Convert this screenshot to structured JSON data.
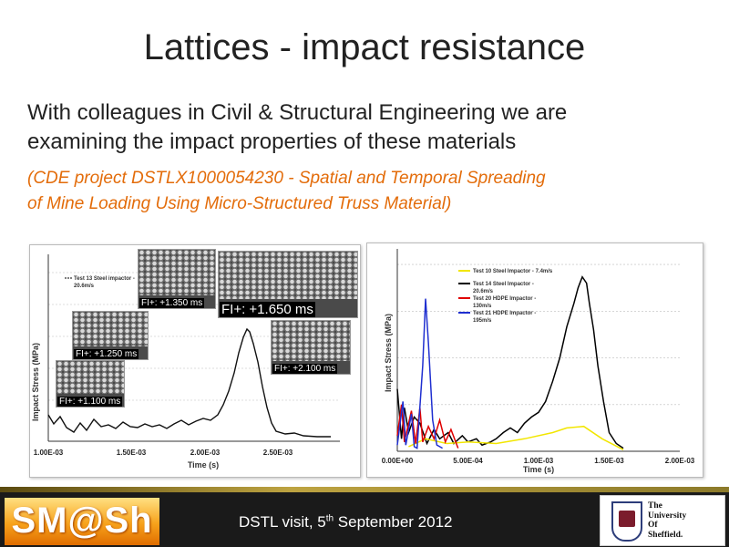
{
  "title": "Lattices - impact resistance",
  "body_line1": "With colleagues in Civil & Structural Engineering we are",
  "body_line2": "examining the impact properties of these materials",
  "project_line1": "(CDE project DSTLX1000054230 - Spatial and Temporal Spreading",
  "project_line2": "of Mine Loading Using Micro-Structured Truss Material)",
  "left_chart": {
    "ylabel": "Impact Stress (MPa)",
    "xlabel": "Time (s)",
    "legend": [
      "Test 13 Steel impactor -",
      "20.6m/s"
    ],
    "ticks": [
      "1.00E-03",
      "1.50E-03",
      "2.00E-03",
      "2.50E-03"
    ],
    "frames": [
      "FI+: +1.350 ms",
      "FI+: +1.650 ms",
      "FI+: +1.250 ms",
      "FI+: +2.100 ms",
      "FI+: +1.100 ms"
    ]
  },
  "chart_data": {
    "type": "line",
    "title": "",
    "xlabel": "Time (s)",
    "ylabel": "Impact Stress (MPa)",
    "xlim": [
      0,
      0.002
    ],
    "x_ticks": [
      "0.00E+00",
      "5.00E-04",
      "1.00E-03",
      "1.50E-03",
      "2.00E-03"
    ],
    "legend": "top-left",
    "series": [
      {
        "name": "Test 10 Steel Impactor - 7.4m/s",
        "color": "#f2e600",
        "points": [
          [
            8e-05,
            3
          ],
          [
            0.0002,
            8
          ],
          [
            0.00035,
            5
          ],
          [
            0.0005,
            6
          ],
          [
            0.0007,
            5
          ],
          [
            0.0009,
            8
          ],
          [
            0.0011,
            12
          ],
          [
            0.0012,
            15
          ],
          [
            0.00132,
            16
          ],
          [
            0.00145,
            8
          ],
          [
            0.0016,
            1
          ]
        ]
      },
      {
        "name": "Test 14 Steel Impactor - 20.6m/s",
        "color": "#000000",
        "points": [
          [
            0,
            40
          ],
          [
            3e-05,
            8
          ],
          [
            5e-05,
            28
          ],
          [
            8e-05,
            12
          ],
          [
            0.00012,
            22
          ],
          [
            0.00016,
            18
          ],
          [
            0.00021,
            5
          ],
          [
            0.00026,
            14
          ],
          [
            0.0003,
            8
          ],
          [
            0.00036,
            12
          ],
          [
            0.0004,
            5
          ],
          [
            0.00046,
            10
          ],
          [
            0.0005,
            6
          ],
          [
            0.00056,
            8
          ],
          [
            0.0006,
            4
          ],
          [
            0.00066,
            6
          ],
          [
            0.0007,
            8
          ],
          [
            0.00075,
            12
          ],
          [
            0.0008,
            15
          ],
          [
            0.00085,
            12
          ],
          [
            0.0009,
            18
          ],
          [
            0.00095,
            22
          ],
          [
            0.001,
            25
          ],
          [
            0.00105,
            32
          ],
          [
            0.0011,
            45
          ],
          [
            0.00115,
            60
          ],
          [
            0.0012,
            80
          ],
          [
            0.00125,
            95
          ],
          [
            0.00128,
            105
          ],
          [
            0.00131,
            112
          ],
          [
            0.00134,
            108
          ],
          [
            0.00136,
            95
          ],
          [
            0.00139,
            78
          ],
          [
            0.00142,
            55
          ],
          [
            0.00146,
            32
          ],
          [
            0.0015,
            12
          ],
          [
            0.00155,
            5
          ],
          [
            0.0016,
            2
          ]
        ]
      },
      {
        "name": "Test 20 HDPE Impactor - 130m/s",
        "color": "#e00000",
        "points": [
          [
            0,
            10
          ],
          [
            3e-05,
            30
          ],
          [
            5e-05,
            6
          ],
          [
            0.0001,
            26
          ],
          [
            0.00013,
            5
          ],
          [
            0.00016,
            28
          ],
          [
            0.00018,
            6
          ],
          [
            0.00022,
            16
          ],
          [
            0.00026,
            8
          ],
          [
            0.0003,
            20
          ],
          [
            0.00034,
            6
          ],
          [
            0.00038,
            14
          ],
          [
            0.00043,
            2
          ]
        ]
      },
      {
        "name": "Test 21 HDPE Impactor - 195m/s",
        "color": "#1f2fd0",
        "points": [
          [
            0,
            4
          ],
          [
            4e-05,
            32
          ],
          [
            6e-05,
            4
          ],
          [
            0.0001,
            24
          ],
          [
            0.00012,
            3
          ],
          [
            0.00014,
            2
          ],
          [
            0.00018,
            55
          ],
          [
            0.0002,
            98
          ],
          [
            0.00022,
            70
          ],
          [
            0.00025,
            20
          ],
          [
            0.00028,
            4
          ],
          [
            0.00032,
            2
          ]
        ]
      }
    ]
  },
  "footer": {
    "logo": "SM@Sh",
    "event": "DSTL visit, 5",
    "sup": "th",
    "event_tail": " September 2012",
    "uni_line1": "The",
    "uni_line2": "University",
    "uni_line3": "Of",
    "uni_line4": "Sheffield."
  }
}
